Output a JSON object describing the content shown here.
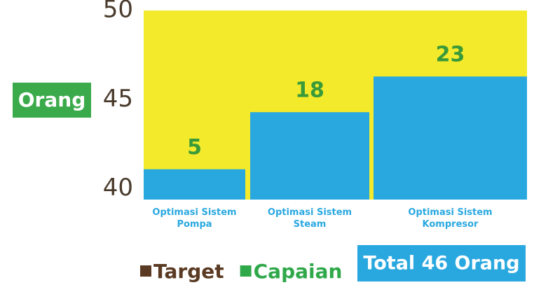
{
  "chart_data": {
    "type": "bar",
    "y_label": "Orang",
    "categories": [
      "Optimasi Sistem Pompa",
      "Optimasi Sistem Steam",
      "Optimasi Sistem Kompresor"
    ],
    "series": [
      {
        "name": "Target",
        "color": "#f2ea2b",
        "legend_color": "#5a3a22",
        "values": [
          50,
          50,
          50
        ]
      },
      {
        "name": "Capaian",
        "color": "#29a8e0",
        "legend_color": "#2fa84a",
        "values": [
          41.1,
          44.3,
          46.3
        ]
      }
    ],
    "data_labels": [
      "5",
      "18",
      "23"
    ],
    "annotation": "Total 46 Orang",
    "ylim": [
      39.4,
      50
    ],
    "yticks": [
      40,
      45,
      50
    ]
  }
}
